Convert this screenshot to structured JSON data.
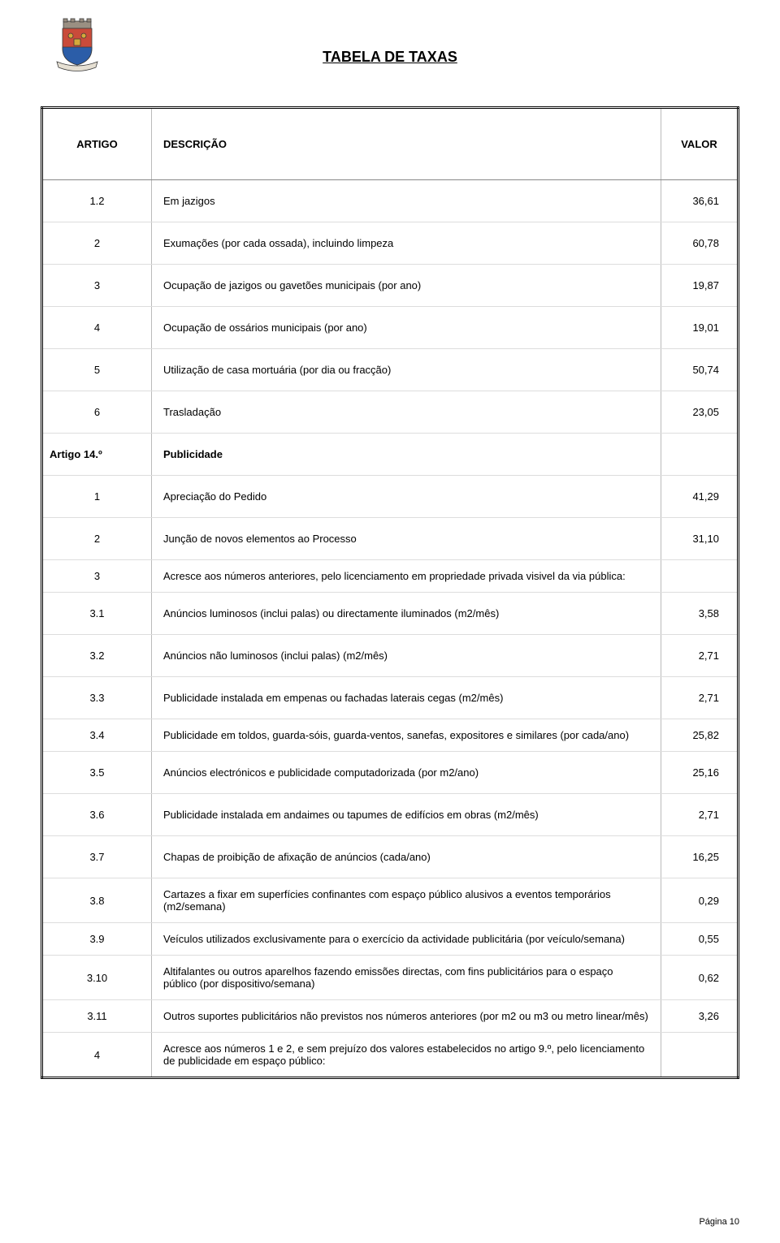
{
  "page": {
    "title": "TABELA DE TAXAS",
    "footer": "Página 10"
  },
  "table": {
    "headers": {
      "artigo": "ARTIGO",
      "descricao": "DESCRIÇÃO",
      "valor": "VALOR"
    },
    "rows": [
      {
        "art": "1.2",
        "desc": "Em jazigos",
        "val": "36,61"
      },
      {
        "art": "2",
        "desc": "Exumações (por cada ossada), incluindo limpeza",
        "val": "60,78"
      },
      {
        "art": "3",
        "desc": "Ocupação de jazigos ou gavetões municipais (por ano)",
        "val": "19,87"
      },
      {
        "art": "4",
        "desc": "Ocupação de ossários municipais (por ano)",
        "val": "19,01"
      },
      {
        "art": "5",
        "desc": "Utilização de casa mortuária (por dia ou fracção)",
        "val": "50,74"
      },
      {
        "art": "6",
        "desc": "Trasladação",
        "val": "23,05"
      },
      {
        "art": "Artigo 14.º",
        "desc": "Publicidade",
        "val": "",
        "section": true
      },
      {
        "art": "1",
        "desc": "Apreciação do Pedido",
        "val": "41,29"
      },
      {
        "art": "2",
        "desc": "Junção de novos elementos ao Processo",
        "val": "31,10"
      },
      {
        "art": "3",
        "desc": "Acresce aos números anteriores, pelo licenciamento em propriedade privada visivel da via pública:",
        "val": "",
        "tight": true
      },
      {
        "art": "3.1",
        "desc": "Anúncios luminosos (inclui palas) ou directamente iluminados (m2/mês)",
        "val": "3,58"
      },
      {
        "art": "3.2",
        "desc": "Anúncios não luminosos (inclui palas) (m2/mês)",
        "val": "2,71"
      },
      {
        "art": "3.3",
        "desc": "Publicidade instalada em empenas ou fachadas laterais cegas (m2/mês)",
        "val": "2,71"
      },
      {
        "art": "3.4",
        "desc": "Publicidade em toldos, guarda-sóis, guarda-ventos, sanefas, expositores e similares (por cada/ano)",
        "val": "25,82",
        "tight": true
      },
      {
        "art": "3.5",
        "desc": "Anúncios electrónicos e publicidade computadorizada (por m2/ano)",
        "val": "25,16"
      },
      {
        "art": "3.6",
        "desc": "Publicidade instalada em andaimes ou tapumes de edifícios em obras (m2/mês)",
        "val": "2,71"
      },
      {
        "art": "3.7",
        "desc": "Chapas de proibição de afixação de anúncios (cada/ano)",
        "val": "16,25"
      },
      {
        "art": "3.8",
        "desc": "Cartazes a fixar em superfícies confinantes com espaço público alusivos a eventos temporários (m2/semana)",
        "val": "0,29",
        "tight": true
      },
      {
        "art": "3.9",
        "desc": "Veículos utilizados exclusivamente para o exercício da actividade publicitária (por veículo/semana)",
        "val": "0,55",
        "tight": true
      },
      {
        "art": "3.10",
        "desc": "Altifalantes ou outros aparelhos fazendo emissões directas, com fins publicitários para o espaço público (por dispositivo/semana)",
        "val": "0,62",
        "tight": true
      },
      {
        "art": "3.11",
        "desc": "Outros suportes publicitários não previstos nos números anteriores (por m2 ou m3 ou metro linear/mês)",
        "val": "3,26",
        "tight": true
      },
      {
        "art": "4",
        "desc": "Acresce aos números 1 e 2, e sem prejuízo dos valores estabelecidos no artigo 9.º, pelo licenciamento de publicidade em espaço público:",
        "val": "",
        "tight": true,
        "last": true
      }
    ]
  },
  "crest": {
    "colors": {
      "castle": "#9a8f82",
      "shield_top": "#c94b3a",
      "shield_bottom": "#2b5da8",
      "gold": "#d6a93a",
      "ribbon": "#e6e0d3",
      "outline": "#3a3a3a"
    }
  }
}
